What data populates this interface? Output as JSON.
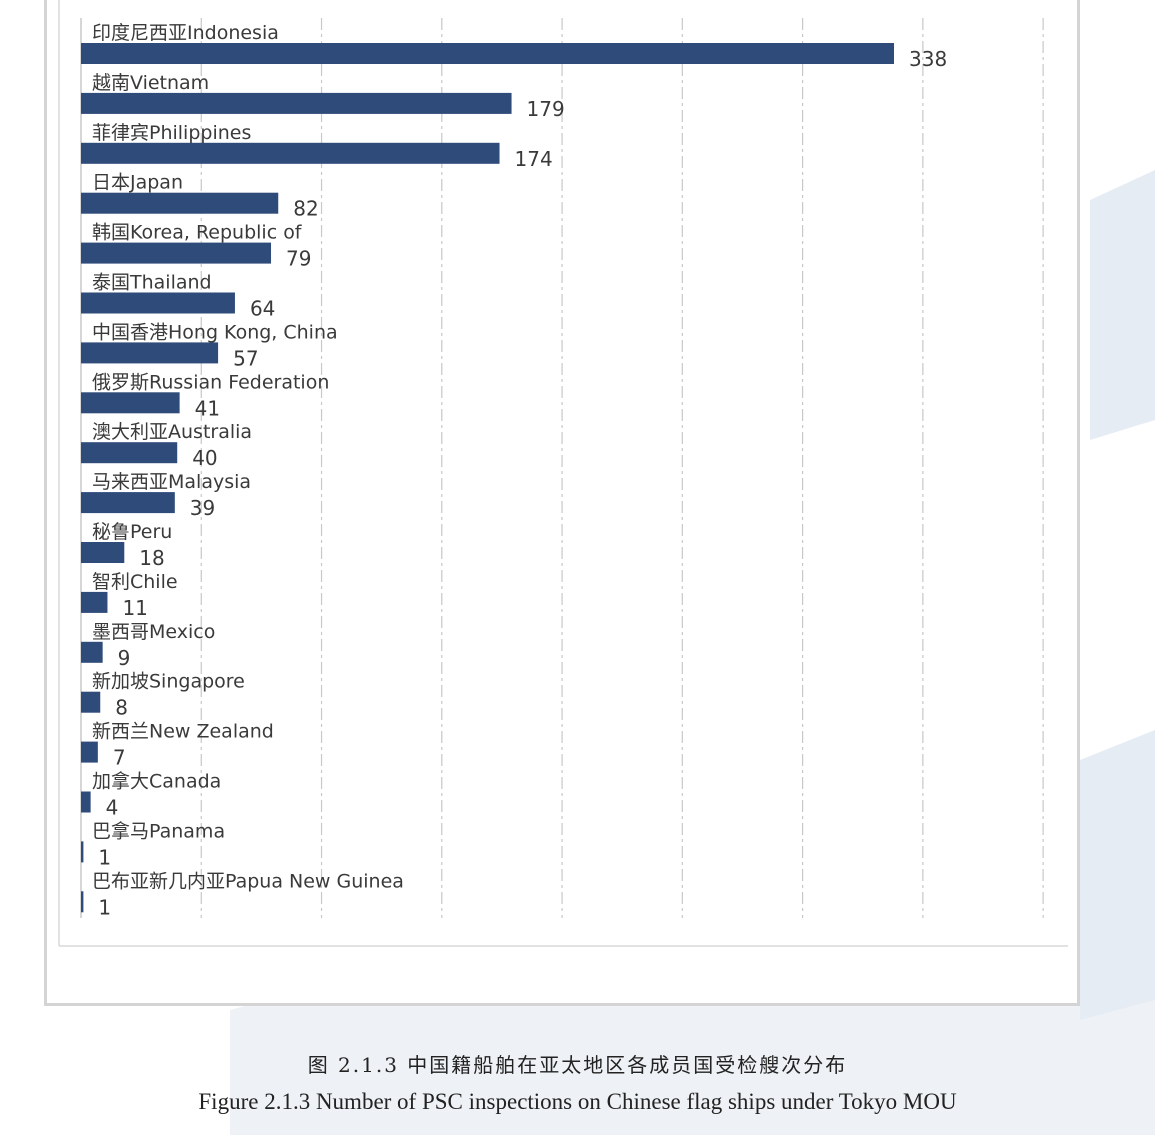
{
  "chart_data": {
    "type": "bar",
    "orientation": "horizontal",
    "categories": [
      "印度尼西亚Indonesia",
      "越南Vietnam",
      "菲律宾Philippines",
      "日本Japan",
      "韩国Korea, Republic of",
      "泰国Thailand",
      "中国香港Hong Kong, China",
      "俄罗斯Russian Federation",
      "澳大利亚Australia",
      "马来西亚Malaysia",
      "秘鲁Peru",
      "智利Chile",
      "墨西哥Mexico",
      "新加坡Singapore",
      "新西兰New Zealand",
      "加拿大Canada",
      "巴拿马Panama",
      "巴布亚新几内亚Papua New Guinea"
    ],
    "values": [
      338,
      179,
      174,
      82,
      79,
      64,
      57,
      41,
      40,
      39,
      18,
      11,
      9,
      8,
      7,
      4,
      1,
      1
    ],
    "xlim": [
      0,
      400
    ],
    "grid": "vertical dashed",
    "bar_color": "#2e4b7a",
    "title": "",
    "xlabel": "",
    "ylabel": ""
  },
  "caption": {
    "cn": "图 2.1.3 中国籍船舶在亚太地区各成员国受检艘次分布",
    "en": "Figure 2.1.3 Number of PSC inspections on Chinese flag ships under Tokyo MOU"
  },
  "colors": {
    "bar": "#2e4b7a",
    "grid": "#c8c8c8",
    "frame": "#d4d4d4",
    "text": "#3a3a3a"
  }
}
